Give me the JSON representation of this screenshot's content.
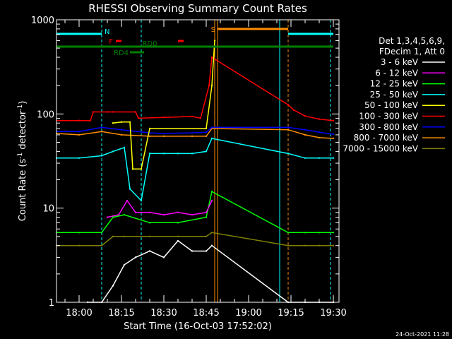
{
  "chart_data": {
    "type": "line",
    "title": "RHESSI Observing Summary Count Rates",
    "xlabel": "Start Time (16-Oct-03 17:52:02)",
    "ylabel": "Count Rate (s",
    "ylabel_exp": "-1",
    "ylabel_tail": " detector",
    "ylabel_end": ")",
    "y_scale": "log",
    "ylim": [
      1,
      1000
    ],
    "y_ticks": [
      {
        "v": 1,
        "label": "1"
      },
      {
        "v": 10,
        "label": "10"
      },
      {
        "v": 100,
        "label": "100"
      },
      {
        "v": 1000,
        "label": "1000"
      }
    ],
    "xlim": [
      "17:52",
      "19:32"
    ],
    "x_ticks": [
      {
        "t": "18:00",
        "label": "18:00"
      },
      {
        "t": "18:15",
        "label": "18:15"
      },
      {
        "t": "18:30",
        "label": "18:30"
      },
      {
        "t": "18:45",
        "label": "18:45"
      },
      {
        "t": "19:00",
        "label": "19:00"
      },
      {
        "t": "19:15",
        "label": "19:15"
      },
      {
        "t": "19:30",
        "label": "19:30"
      }
    ],
    "legend": {
      "header": [
        "Det 1,3,4,5,6,9,",
        "FDecim 1, Att 0"
      ],
      "placement": "right"
    },
    "series": [
      {
        "name": "3 - 6 keV",
        "color": "#ffffff",
        "t": [
          "18:03",
          "18:08",
          "18:12",
          "18:16",
          "18:20",
          "18:25",
          "18:30",
          "18:35",
          "18:40",
          "18:45",
          "18:47",
          "19:14",
          "19:20",
          "19:25",
          "19:30"
        ],
        "values": [
          1.0,
          1.0,
          1.5,
          2.5,
          3.0,
          3.5,
          3.0,
          4.5,
          3.5,
          3.5,
          4.0,
          1.0,
          1.0,
          1.0,
          1.0
        ]
      },
      {
        "name": "6 - 12 keV",
        "color": "#ff00ff",
        "t": [
          "18:10",
          "18:14",
          "18:17",
          "18:20",
          "18:25",
          "18:30",
          "18:35",
          "18:40",
          "18:45",
          "18:47"
        ],
        "values": [
          8.0,
          8.5,
          12.0,
          9.0,
          9.0,
          8.5,
          9.0,
          8.5,
          9.0,
          12.0
        ]
      },
      {
        "name": "12 - 25 keV",
        "color": "#00ff00",
        "t": [
          "17:52",
          "18:00",
          "18:08",
          "18:12",
          "18:16",
          "18:25",
          "18:35",
          "18:45",
          "18:47",
          "19:14",
          "19:20",
          "19:25",
          "19:30"
        ],
        "values": [
          5.5,
          5.5,
          5.5,
          8.0,
          8.5,
          7.0,
          7.0,
          8.0,
          15.0,
          5.5,
          5.5,
          5.5,
          5.5
        ]
      },
      {
        "name": "25 - 50 keV",
        "color": "#00ffff",
        "t": [
          "17:52",
          "18:00",
          "18:08",
          "18:12",
          "18:16",
          "18:18",
          "18:22",
          "18:25",
          "18:30",
          "18:35",
          "18:40",
          "18:45",
          "18:47",
          "19:14",
          "19:20",
          "19:25",
          "19:30"
        ],
        "values": [
          34,
          34,
          36,
          40,
          44,
          16,
          12,
          38,
          38,
          38,
          38,
          40,
          55,
          38,
          34,
          34,
          34
        ]
      },
      {
        "name": "50 - 100 keV",
        "color": "#ffff00",
        "t": [
          "18:12",
          "18:15",
          "18:18",
          "18:19",
          "18:22",
          "18:25",
          "18:45",
          "18:47",
          "18:48"
        ],
        "values": [
          80,
          82,
          82,
          26,
          26,
          70,
          70,
          200,
          600
        ]
      },
      {
        "name": "100 - 300 keV",
        "color": "#ff0000",
        "t": [
          "17:52",
          "18:00",
          "18:04",
          "18:05",
          "18:10",
          "18:12",
          "18:20",
          "18:21",
          "18:30",
          "18:40",
          "18:43",
          "18:46",
          "18:47",
          "19:14",
          "19:16",
          "19:20",
          "19:25",
          "19:30"
        ],
        "values": [
          85,
          85,
          85,
          105,
          105,
          105,
          105,
          90,
          92,
          94,
          90,
          200,
          400,
          125,
          110,
          95,
          88,
          85
        ]
      },
      {
        "name": "300 - 800 keV",
        "color": "#0000ff",
        "t": [
          "17:52",
          "18:00",
          "18:08",
          "18:15",
          "18:25",
          "18:30",
          "18:40",
          "18:45",
          "18:47",
          "19:14",
          "19:20",
          "19:25",
          "19:30"
        ],
        "values": [
          65,
          65,
          72,
          68,
          63,
          62,
          63,
          64,
          72,
          72,
          68,
          64,
          61
        ]
      },
      {
        "name": "800 - 7000 keV",
        "color": "#ff8c00",
        "t": [
          "17:52",
          "18:00",
          "18:08",
          "18:15",
          "18:25",
          "18:30",
          "18:40",
          "18:45",
          "18:47",
          "19:14",
          "19:20",
          "19:25",
          "19:30"
        ],
        "values": [
          62,
          60,
          65,
          60,
          58,
          58,
          58,
          58,
          70,
          68,
          60,
          56,
          55
        ]
      },
      {
        "name": "7000 - 15000 keV",
        "color": "#808000",
        "t": [
          "17:52",
          "18:00",
          "18:08",
          "18:12",
          "18:16",
          "18:25",
          "18:35",
          "18:45",
          "18:47",
          "19:14",
          "19:20",
          "19:25",
          "19:30"
        ],
        "values": [
          4.0,
          4.0,
          4.0,
          5.0,
          5.0,
          5.0,
          5.0,
          5.0,
          5.5,
          4.0,
          4.0,
          4.0,
          4.0
        ]
      }
    ],
    "vertical_lines": [
      {
        "t": "18:08",
        "color": "#00ffff",
        "style": "dashed"
      },
      {
        "t": "18:22",
        "color": "#00ffff",
        "style": "dashed"
      },
      {
        "t": "18:48",
        "color": "#ff8c00",
        "style": "solid"
      },
      {
        "t": "18:49",
        "color": "#ff8c00",
        "style": "solid"
      },
      {
        "t": "19:11",
        "color": "#00ffff",
        "style": "solid"
      },
      {
        "t": "19:14",
        "color": "#ff8c00",
        "style": "dashed"
      },
      {
        "t": "19:29",
        "color": "#00ffff",
        "style": "dashed"
      }
    ],
    "flag_bars": [
      {
        "label": "N",
        "color": "#00ffff",
        "segments": [
          [
            "17:52",
            "18:08"
          ],
          [
            "19:14",
            "19:30"
          ]
        ]
      },
      {
        "label": "F",
        "color": "#ff0000",
        "segments": [
          [
            "18:13",
            "18:15"
          ],
          [
            "18:35",
            "18:37"
          ]
        ]
      },
      {
        "label": "RD0",
        "color": "#008000",
        "segments": [
          [
            "17:52",
            "19:30"
          ]
        ]
      },
      {
        "label": "RD4",
        "color": "#008000",
        "segments": [
          [
            "18:18",
            "18:23"
          ]
        ]
      },
      {
        "label": "S",
        "color": "#ff8c00",
        "segments": [
          [
            "18:49",
            "19:14"
          ]
        ]
      }
    ]
  },
  "footer": {
    "timestamp": "24-Oct-2021 11:28"
  }
}
